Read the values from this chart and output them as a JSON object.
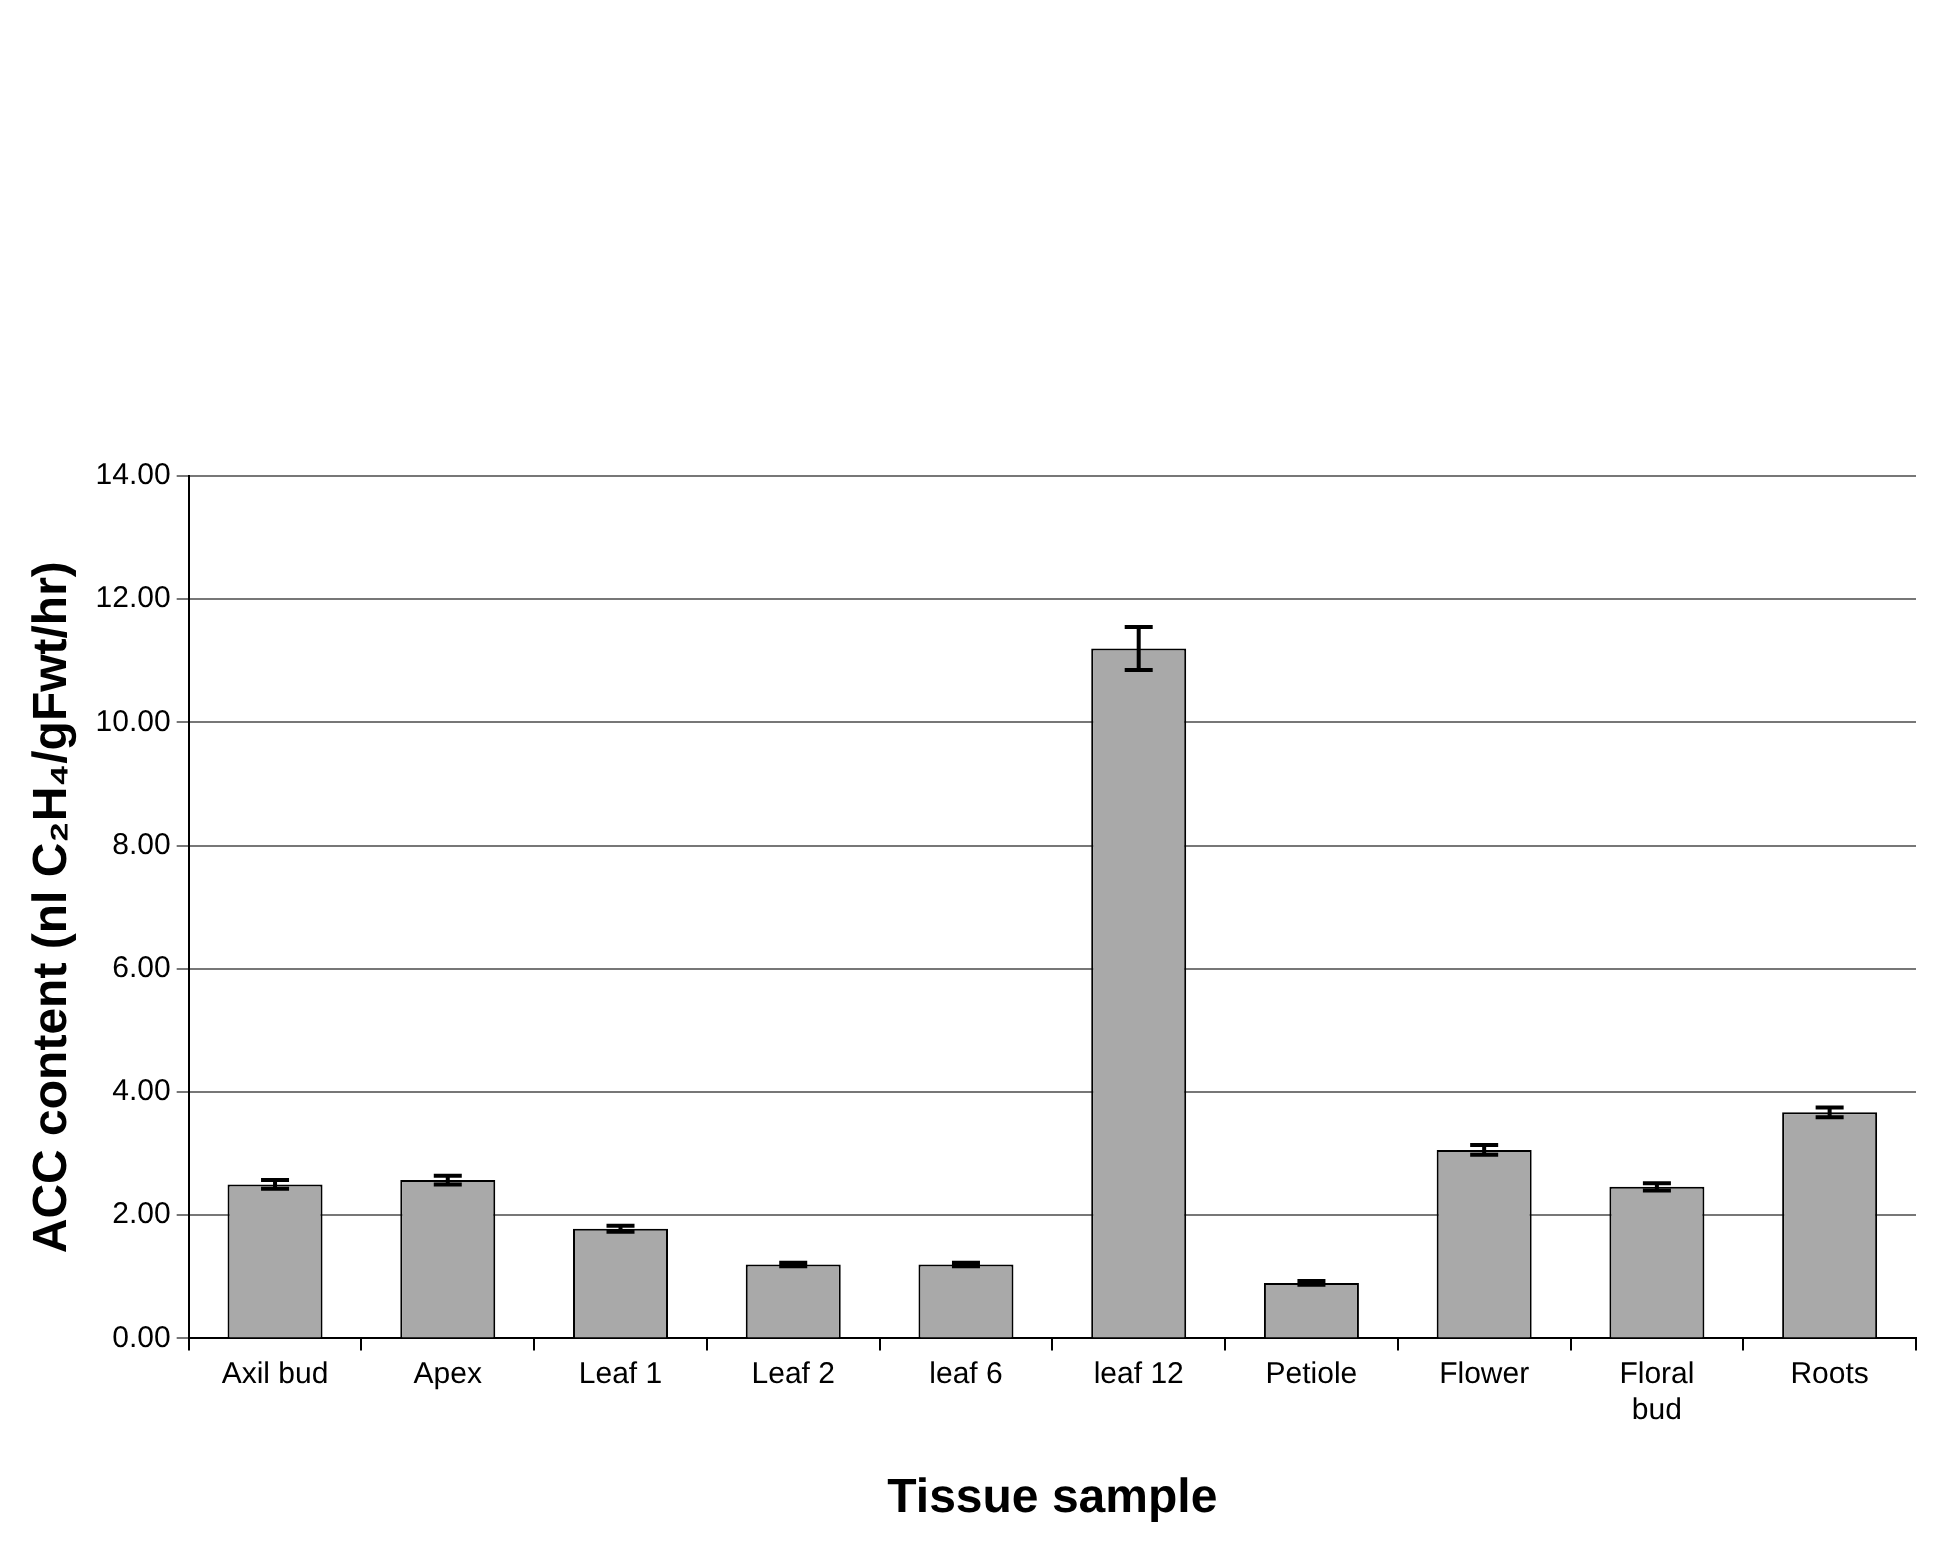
{
  "chart_data": {
    "type": "bar",
    "xlabel": "Tissue sample",
    "ylabel": "ACC content (nl C₂H₄/gFwt/hr)",
    "categories": [
      "Axil bud",
      "Apex",
      "Leaf 1",
      "Leaf 2",
      "leaf 6",
      "leaf 12",
      "Petiole",
      "Flower",
      "Floral bud",
      "Roots"
    ],
    "values": [
      2.5,
      2.57,
      1.78,
      1.2,
      1.2,
      11.2,
      0.9,
      3.06,
      2.46,
      3.67
    ],
    "errors": [
      0.07,
      0.07,
      0.05,
      0.03,
      0.03,
      0.35,
      0.03,
      0.08,
      0.06,
      0.08
    ],
    "color": "#a9a9a9",
    "ylim": [
      0,
      14
    ],
    "yticks": [
      {
        "value": 0,
        "label": "0.00"
      },
      {
        "value": 2,
        "label": "2.00"
      },
      {
        "value": 4,
        "label": "4.00"
      },
      {
        "value": 6,
        "label": "6.00"
      },
      {
        "value": 8,
        "label": "8.00"
      },
      {
        "value": 10,
        "label": "10.00"
      },
      {
        "value": 12,
        "label": "12.00"
      },
      {
        "value": 14,
        "label": "14.00"
      }
    ],
    "grid": "y",
    "legend": false
  }
}
